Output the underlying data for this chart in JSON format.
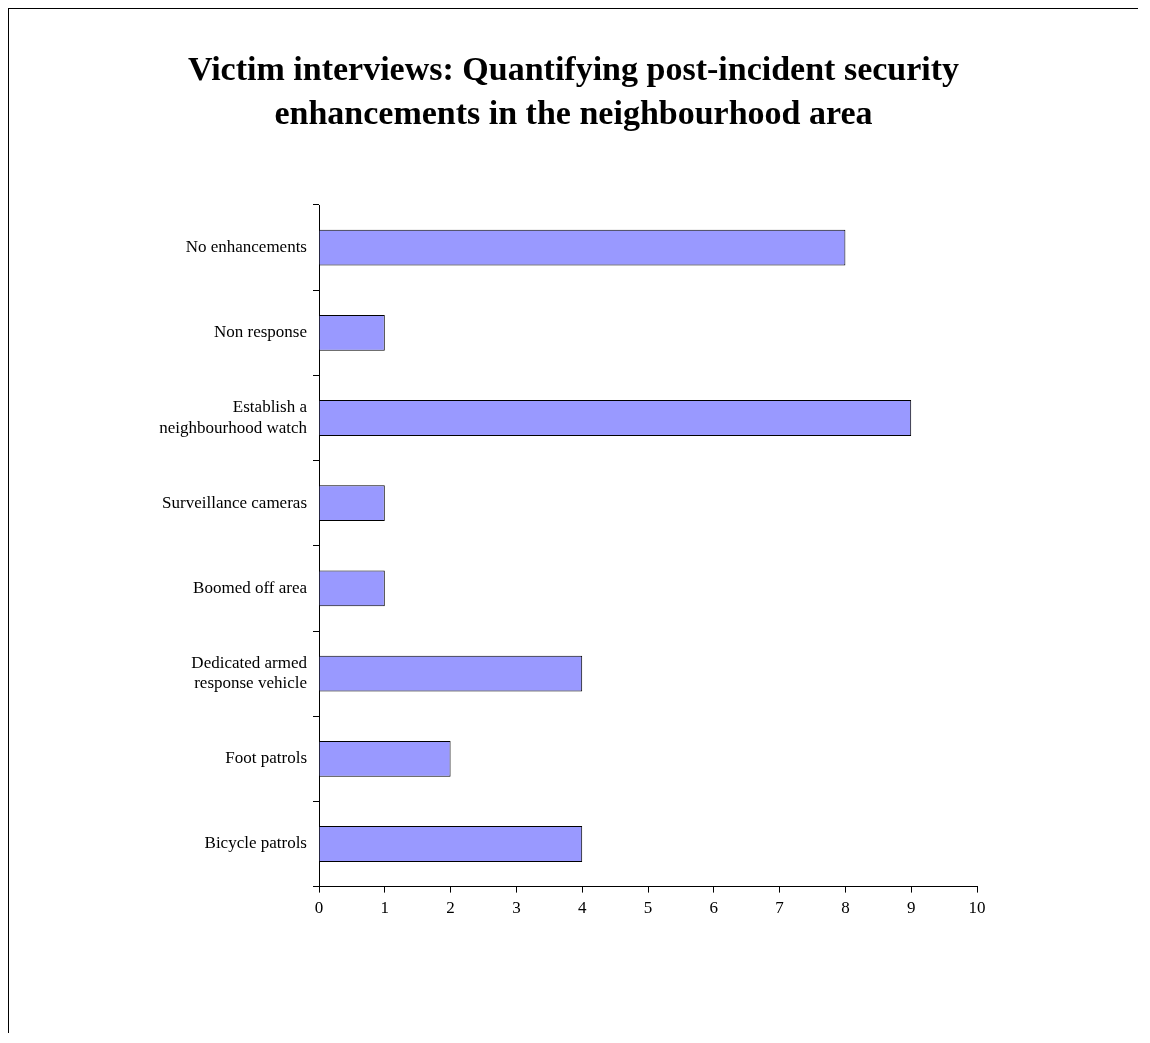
{
  "chart_data": {
    "type": "bar",
    "orientation": "horizontal",
    "title": "Victim interviews:  Quantifying post-incident security enhancements in the neighbourhood area",
    "categories": [
      "No enhancements",
      "Non response",
      "Establish a neighbourhood watch",
      "Surveillance cameras",
      "Boomed off area",
      "Dedicated armed response vehicle",
      "Foot patrols",
      "Bicycle patrols"
    ],
    "values": [
      8,
      1,
      9,
      1,
      1,
      4,
      2,
      4
    ],
    "color": "#9999ff",
    "xlim": [
      0,
      10
    ],
    "xticks": [
      0,
      1,
      2,
      3,
      4,
      5,
      6,
      7,
      8,
      9,
      10
    ],
    "grid": false,
    "legend": false
  }
}
